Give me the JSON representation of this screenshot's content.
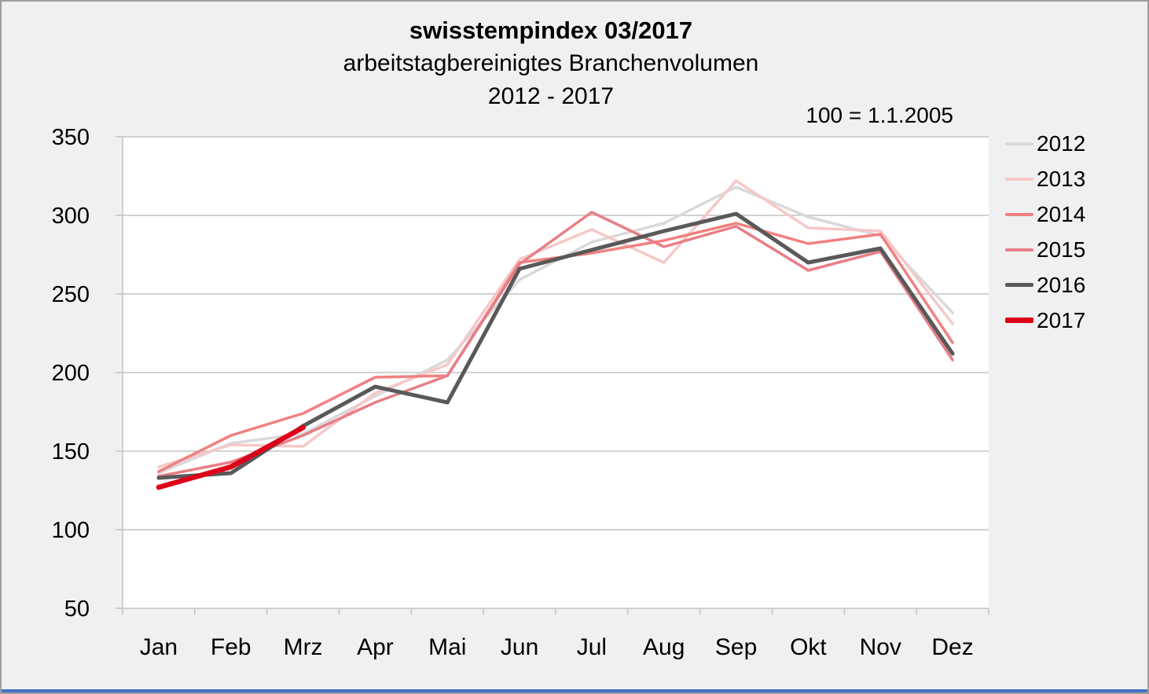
{
  "header": {
    "title": "swisstempindex 03/2017",
    "subtitle": "arbeitstagbereinigtes Branchenvolumen",
    "period": "2012 - 2017",
    "note": "100 = 1.1.2005"
  },
  "chart_data": {
    "type": "line",
    "title": "swisstempindex 03/2017",
    "subtitle": "arbeitstagbereinigtes Branchenvolumen",
    "period": "2012 - 2017",
    "note": "100 = 1.1.2005",
    "categories": [
      "Jan",
      "Feb",
      "Mrz",
      "Apr",
      "Mai",
      "Jun",
      "Jul",
      "Aug",
      "Sep",
      "Okt",
      "Nov",
      "Dez"
    ],
    "ylim": [
      50,
      350
    ],
    "yticks": [
      350,
      300,
      250,
      200,
      150,
      100,
      50
    ],
    "grid": "horizontal",
    "legend_position": "right",
    "colors": {
      "background": "#f0f0f0",
      "plot_background": "#ffffff",
      "gridline": "#c3c3c3",
      "bottom_accent_bar": "#4472c4"
    },
    "series": [
      {
        "name": "2012",
        "color": "#d9d9d9",
        "width": 3.5,
        "values": [
          136,
          155,
          161,
          185,
          208,
          259,
          283,
          295,
          318,
          299,
          287,
          238
        ]
      },
      {
        "name": "2013",
        "color": "#f6c8c8",
        "width": 3.5,
        "values": [
          140,
          154,
          153,
          187,
          205,
          272,
          291,
          270,
          322,
          292,
          290,
          231
        ]
      },
      {
        "name": "2014",
        "color": "#f28080",
        "width": 3.5,
        "values": [
          137,
          160,
          174,
          197,
          198,
          270,
          276,
          284,
          295,
          282,
          288,
          219
        ]
      },
      {
        "name": "2015",
        "color": "#e87e86",
        "width": 3.5,
        "values": [
          134,
          143,
          160,
          181,
          198,
          269,
          302,
          280,
          293,
          265,
          277,
          208
        ]
      },
      {
        "name": "2016",
        "color": "#595959",
        "width": 5,
        "values": [
          133,
          136,
          166,
          191,
          181,
          266,
          278,
          290,
          301,
          270,
          279,
          212
        ]
      },
      {
        "name": "2017",
        "color": "#dd0019",
        "width": 6.5,
        "values": [
          127,
          140,
          165
        ]
      }
    ]
  }
}
